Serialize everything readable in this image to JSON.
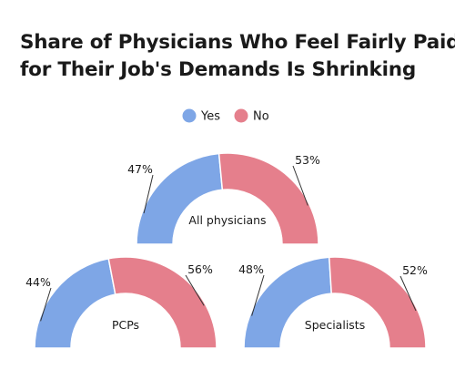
{
  "title_lines": [
    "Share of Physicians Who Feel Fairly Paid",
    "for Their Job's Demands Is Shrinking"
  ],
  "chart_data": {
    "type": "pie",
    "variant": "semi-donut",
    "title": "Share of Physicians Who Feel Fairly Paid for Their Job's Demands Is Shrinking",
    "legend_position": "top-center",
    "series": [
      {
        "name": "Yes",
        "color": "#7ea6e6"
      },
      {
        "name": "No",
        "color": "#e57f8c"
      }
    ],
    "charts": [
      {
        "label": "All physicians",
        "yes": 47,
        "no": 53,
        "yes_label": "47%",
        "no_label": "53%"
      },
      {
        "label": "PCPs",
        "yes": 44,
        "no": 56,
        "yes_label": "44%",
        "no_label": "56%"
      },
      {
        "label": "Specialists",
        "yes": 48,
        "no": 52,
        "yes_label": "48%",
        "no_label": "52%"
      }
    ]
  }
}
